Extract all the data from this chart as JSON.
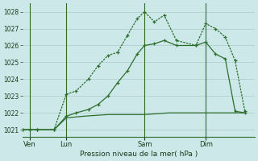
{
  "bg_color": "#cce8e8",
  "grid_color": "#aacccc",
  "line_color": "#2d6e2d",
  "xlabel": "Pression niveau de la mer( hPa )",
  "ylim": [
    1020.6,
    1028.5
  ],
  "yticks": [
    1021,
    1022,
    1023,
    1024,
    1025,
    1026,
    1027,
    1028
  ],
  "xlim": [
    0,
    9.5
  ],
  "xtick_labels": [
    "Ven",
    "Lun",
    "Sam",
    "Dim"
  ],
  "xtick_positions": [
    0.3,
    1.8,
    5.0,
    7.5
  ],
  "vlines": [
    0.3,
    1.8,
    5.0,
    7.5
  ],
  "line1_x": [
    0.0,
    0.3,
    0.6,
    1.3,
    1.8,
    2.2,
    2.7,
    3.1,
    3.5,
    3.9,
    4.3,
    4.7,
    5.0,
    5.4,
    5.8,
    6.3,
    7.1,
    7.5,
    7.9,
    8.3,
    8.7,
    9.1
  ],
  "line1_y": [
    1021.0,
    1021.0,
    1021.0,
    1021.0,
    1023.1,
    1023.3,
    1024.0,
    1024.8,
    1025.4,
    1025.6,
    1026.6,
    1027.6,
    1028.0,
    1027.4,
    1027.8,
    1026.3,
    1026.0,
    1027.3,
    1027.0,
    1026.5,
    1025.1,
    1022.1
  ],
  "line2_x": [
    0.0,
    0.3,
    0.6,
    1.3,
    1.8,
    2.2,
    2.7,
    3.1,
    3.5,
    3.9,
    4.3,
    4.7,
    5.0,
    5.4,
    5.8,
    6.3,
    7.1,
    7.5,
    7.9,
    8.3,
    8.7,
    9.1
  ],
  "line2_y": [
    1021.0,
    1021.0,
    1021.0,
    1021.0,
    1021.8,
    1022.0,
    1022.2,
    1022.5,
    1023.0,
    1023.8,
    1024.5,
    1025.5,
    1026.0,
    1026.1,
    1026.3,
    1026.0,
    1026.0,
    1026.2,
    1025.5,
    1025.2,
    1022.1,
    1022.0
  ],
  "line3_x": [
    0.0,
    0.3,
    0.6,
    1.3,
    1.8,
    2.5,
    3.5,
    5.0,
    6.0,
    7.5,
    8.5,
    9.1
  ],
  "line3_y": [
    1021.0,
    1021.0,
    1021.0,
    1021.0,
    1021.7,
    1021.8,
    1021.9,
    1021.9,
    1022.0,
    1022.0,
    1022.0,
    1022.0
  ]
}
